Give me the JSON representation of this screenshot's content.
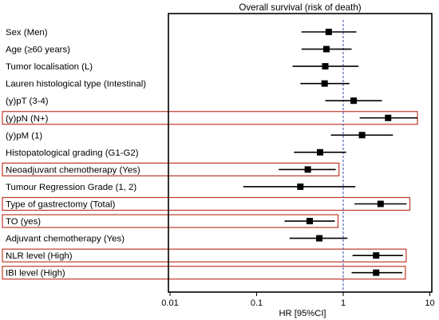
{
  "chart_data": {
    "type": "forest",
    "title": "Overall survival (risk of death)",
    "xlabel": "HR [95%CI]",
    "xscale": "log",
    "xlim": [
      0.01,
      10
    ],
    "xticks": [
      "0.01",
      "0.1",
      "1",
      "10"
    ],
    "xtick_values": [
      0.01,
      0.1,
      1,
      10
    ],
    "reference_line": 1,
    "highlight_color": "#c0392b",
    "reference_color": "#4a57b5",
    "rows": [
      {
        "label": "Sex (Men)",
        "hr": 0.68,
        "lo": 0.33,
        "hi": 1.42,
        "highlight": false
      },
      {
        "label": "Age (≥60 years)",
        "hr": 0.64,
        "lo": 0.33,
        "hi": 1.25,
        "highlight": false
      },
      {
        "label": "Tumor localisation (L)",
        "hr": 0.62,
        "lo": 0.26,
        "hi": 1.5,
        "highlight": false
      },
      {
        "label": "Lauren histological type (Intestinal)",
        "hr": 0.61,
        "lo": 0.32,
        "hi": 1.18,
        "highlight": false
      },
      {
        "label": "(y)pT (3-4)",
        "hr": 1.32,
        "lo": 0.62,
        "hi": 2.8,
        "highlight": false
      },
      {
        "label": "(y)pN (N+)",
        "hr": 3.3,
        "lo": 1.55,
        "hi": 7.2,
        "highlight": true
      },
      {
        "label": "(y)pM (1)",
        "hr": 1.65,
        "lo": 0.72,
        "hi": 3.75,
        "highlight": false
      },
      {
        "label": "Histopatological grading (G1-G2)",
        "hr": 0.54,
        "lo": 0.27,
        "hi": 1.08,
        "highlight": false
      },
      {
        "label": "Neoadjuvant chemotherapy (Yes)",
        "hr": 0.39,
        "lo": 0.18,
        "hi": 0.82,
        "highlight": true
      },
      {
        "label": "Tumour Regression Grade (1, 2)",
        "hr": 0.32,
        "lo": 0.07,
        "hi": 1.38,
        "highlight": false
      },
      {
        "label": "Type of gastrectomy (Total)",
        "hr": 2.7,
        "lo": 1.35,
        "hi": 5.4,
        "highlight": true
      },
      {
        "label": "TO (yes)",
        "hr": 0.41,
        "lo": 0.21,
        "hi": 0.8,
        "highlight": true
      },
      {
        "label": "Adjuvant chemotherapy (Yes)",
        "hr": 0.53,
        "lo": 0.24,
        "hi": 1.12,
        "highlight": false
      },
      {
        "label": "NLR level (High)",
        "hr": 2.4,
        "lo": 1.28,
        "hi": 4.9,
        "highlight": true
      },
      {
        "label": "IBI level (High)",
        "hr": 2.4,
        "lo": 1.25,
        "hi": 4.8,
        "highlight": true
      }
    ]
  }
}
